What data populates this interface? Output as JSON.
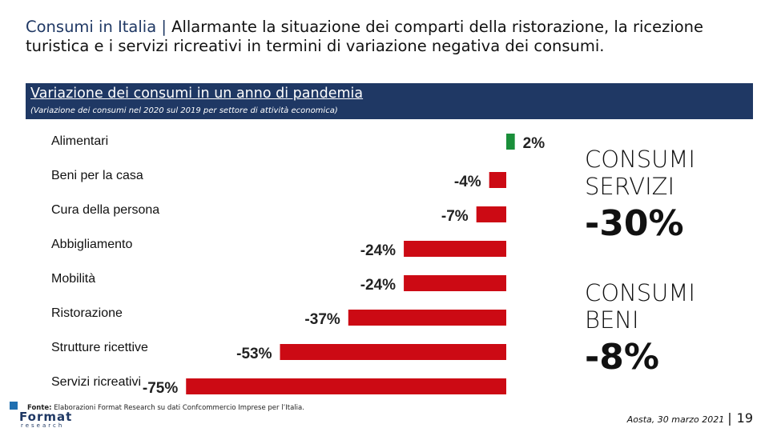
{
  "header": {
    "title_lead": "Consumi in Italia |",
    "title_rest": " Allarmante la situazione dei comparti della ristorazione, la ricezione turistica e i servizi ricreativi in termini di variazione negativa dei consumi."
  },
  "banner": {
    "heading": "Variazione dei consumi in un anno di pandemia",
    "subheading": "(Variazione dei consumi nel 2020 sul 2019 per settore di attività economica)"
  },
  "chart_data": {
    "type": "bar",
    "orientation": "horizontal",
    "title": "Variazione dei consumi in un anno di pandemia",
    "categories": [
      "Alimentari",
      "Beni per la casa",
      "Cura della persona",
      "Abbigliamento",
      "Mobilità",
      "Ristorazione",
      "Strutture ricettive",
      "Servizi ricreativi"
    ],
    "values": [
      2,
      -4,
      -7,
      -24,
      -24,
      -37,
      -53,
      -75
    ],
    "value_labels": [
      "2%",
      "-4%",
      "-7%",
      "-24%",
      "-24%",
      "-37%",
      "-53%",
      "-75%"
    ],
    "unit": "%",
    "xlim": [
      -75,
      2
    ],
    "colors": {
      "positive": "#1a8f3a",
      "negative": "#cc0a14"
    }
  },
  "kpis": [
    {
      "label_line1": "CONSUMI",
      "label_line2": "SERVIZI",
      "value": "-30%"
    },
    {
      "label_line1": "CONSUMI",
      "label_line2": "BENI",
      "value": "-8%"
    }
  ],
  "source": {
    "label": "Fonte:",
    "text": " Elaborazioni Format Research su dati Confcommercio Imprese per l’Italia."
  },
  "logo": {
    "name": "Format",
    "sub": "research"
  },
  "footer": {
    "place_date": "Aosta, 30 marzo 2021",
    "separator": "|",
    "page": "19"
  }
}
